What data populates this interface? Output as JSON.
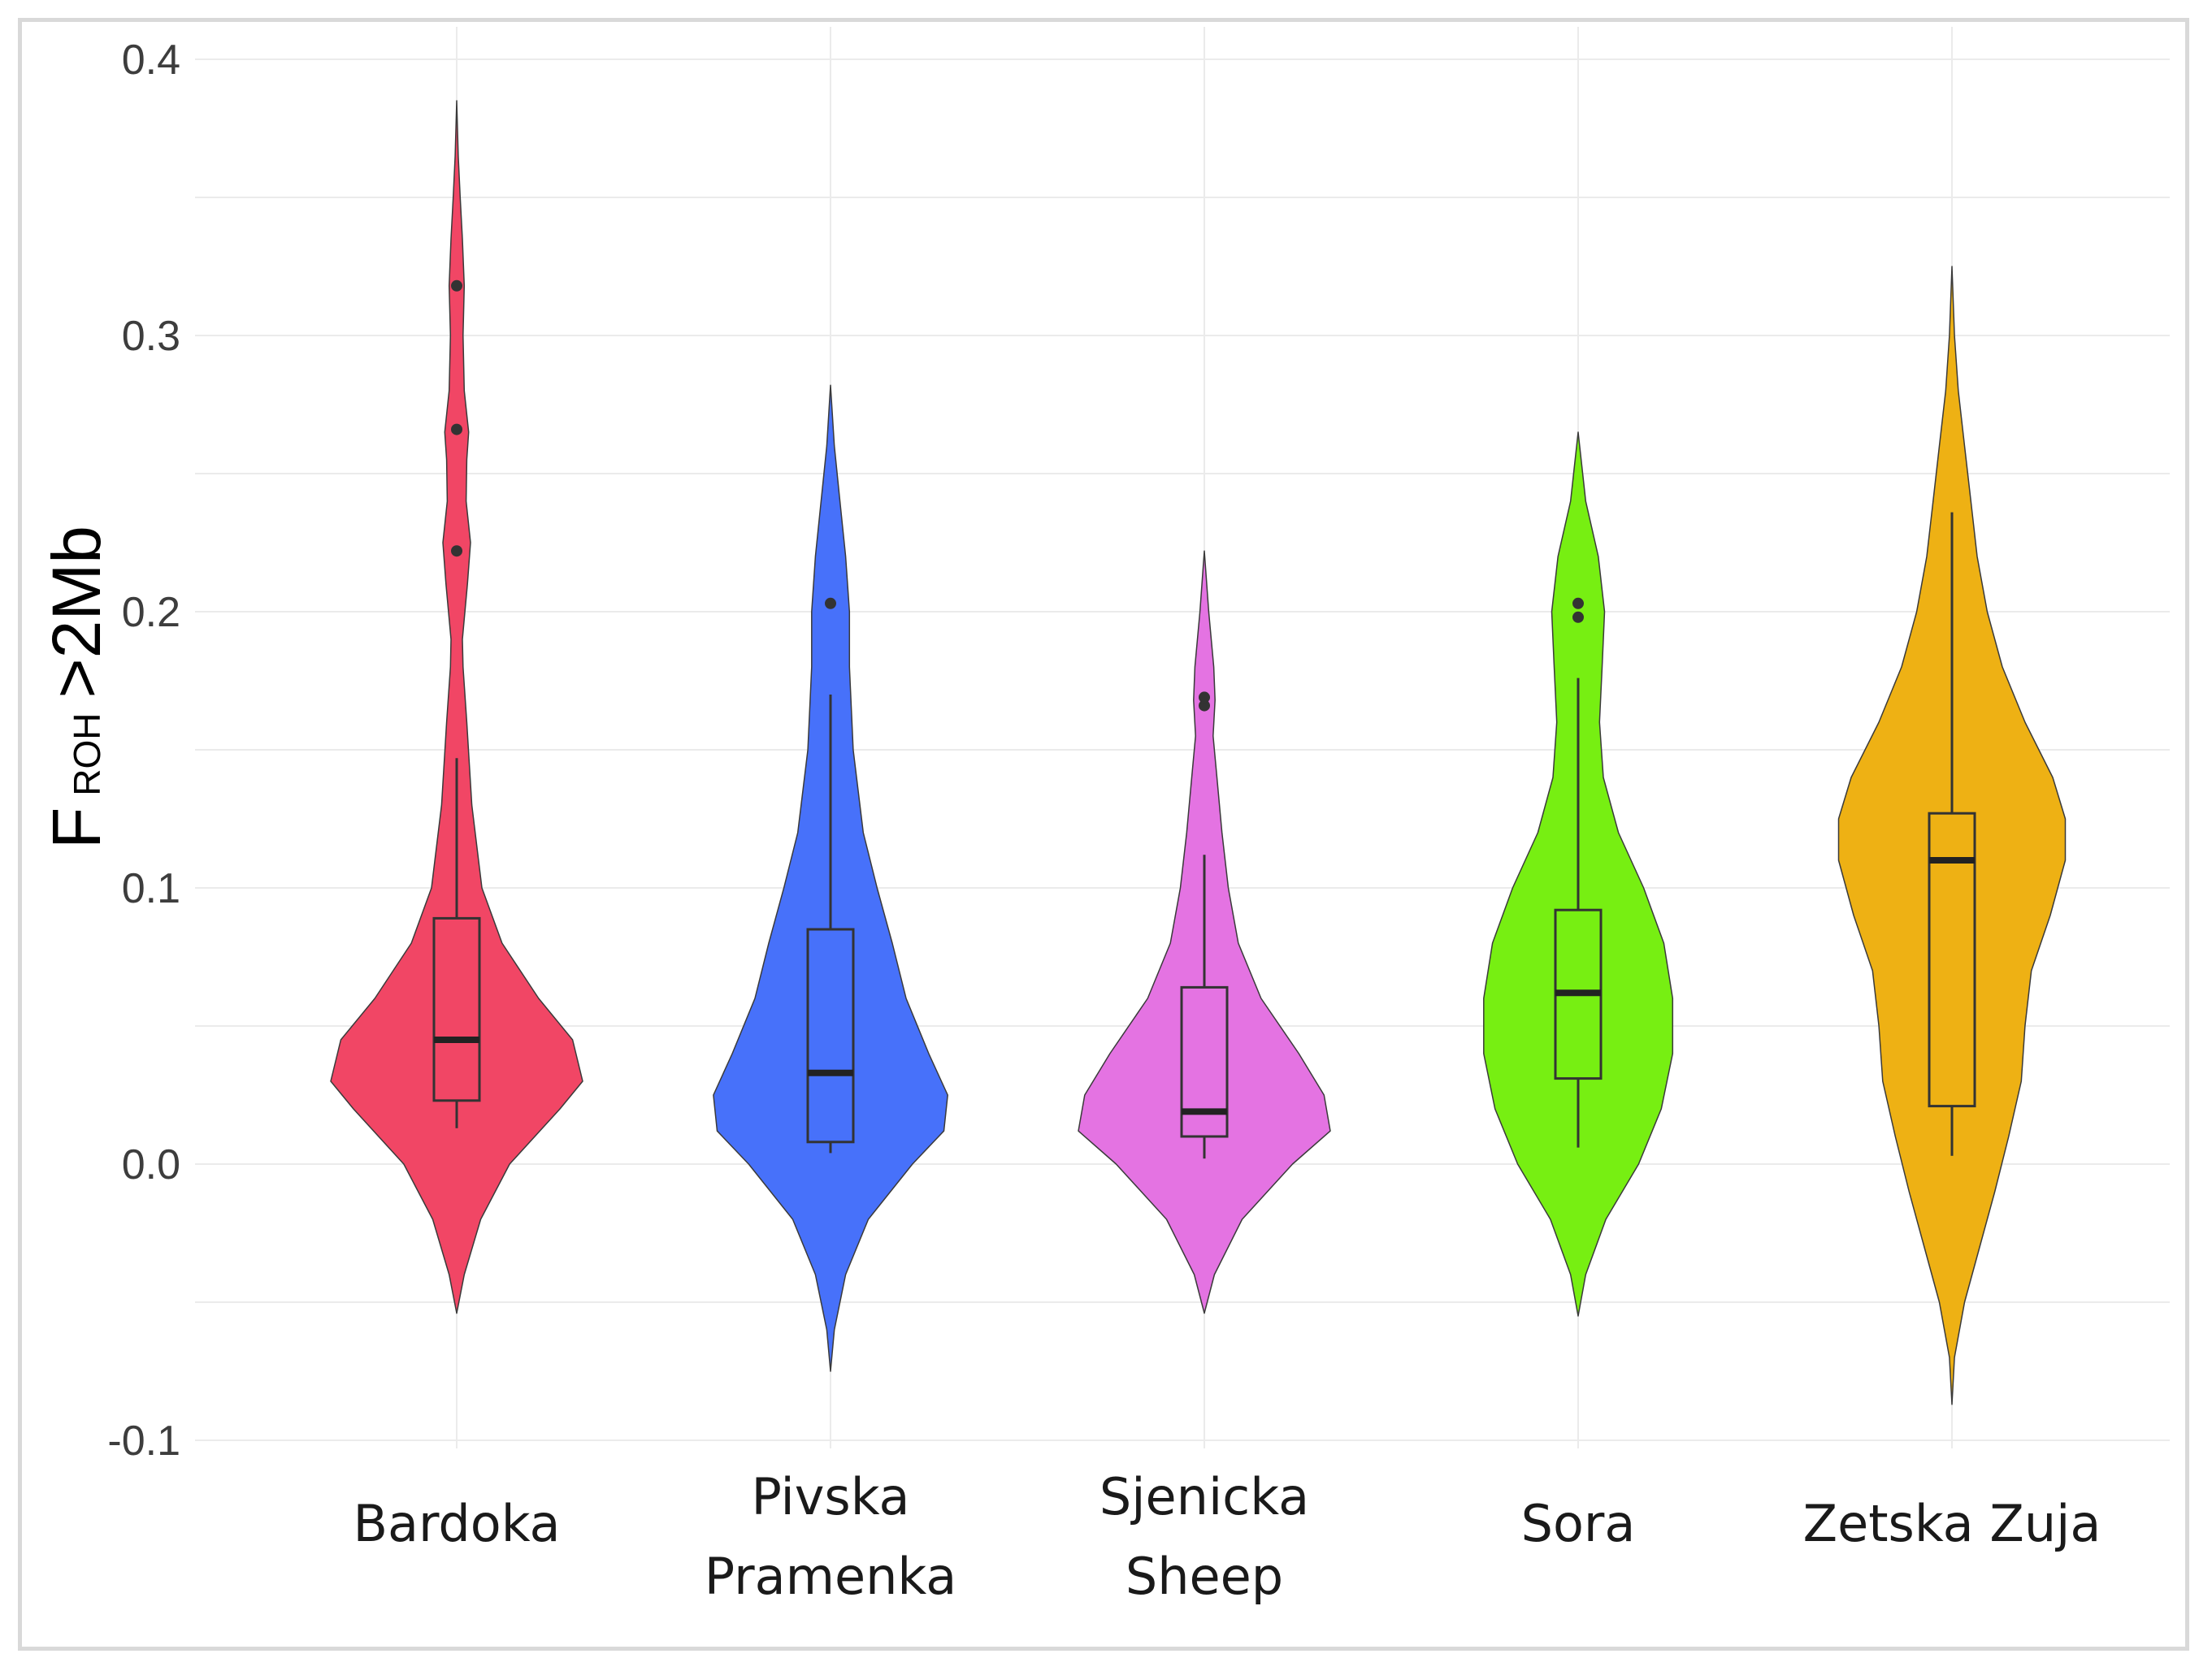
{
  "chart_data": {
    "type": "violin",
    "title": "",
    "xlabel": "",
    "ylabel": {
      "main": "F",
      "subscript": "ROH",
      "suffix": ">2Mb"
    },
    "ylim": [
      -0.1,
      0.4
    ],
    "yticks": [
      -0.1,
      0.0,
      0.1,
      0.2,
      0.3,
      0.4
    ],
    "ytick_labels": [
      "-0.1",
      "0.0",
      "0.1",
      "0.2",
      "0.3",
      "0.4"
    ],
    "grid": true,
    "legend": "none",
    "series": [
      {
        "name": "Bardoka",
        "label_lines": [
          "Bardoka"
        ],
        "color": "#F14665",
        "box": {
          "whisker_low": 0.013,
          "q1": 0.023,
          "median": 0.045,
          "q3": 0.089,
          "whisker_high": 0.147
        },
        "outliers": [
          0.222,
          0.266,
          0.318
        ],
        "violin_range": [
          -0.054,
          0.385
        ],
        "density": [
          [
            -0.054,
            0.0
          ],
          [
            -0.04,
            0.06
          ],
          [
            -0.02,
            0.19
          ],
          [
            0.0,
            0.42
          ],
          [
            0.02,
            0.82
          ],
          [
            0.03,
            1.0
          ],
          [
            0.045,
            0.92
          ],
          [
            0.06,
            0.65
          ],
          [
            0.08,
            0.36
          ],
          [
            0.1,
            0.2
          ],
          [
            0.13,
            0.12
          ],
          [
            0.16,
            0.08
          ],
          [
            0.18,
            0.05
          ],
          [
            0.19,
            0.045
          ],
          [
            0.21,
            0.085
          ],
          [
            0.225,
            0.11
          ],
          [
            0.24,
            0.075
          ],
          [
            0.255,
            0.08
          ],
          [
            0.265,
            0.095
          ],
          [
            0.28,
            0.06
          ],
          [
            0.3,
            0.05
          ],
          [
            0.318,
            0.06
          ],
          [
            0.335,
            0.045
          ],
          [
            0.35,
            0.028
          ],
          [
            0.365,
            0.012
          ],
          [
            0.385,
            0.0
          ]
        ]
      },
      {
        "name": "Pivska Pramenka",
        "label_lines": [
          "Pivska",
          "Pramenka"
        ],
        "color": "#4771FA",
        "box": {
          "whisker_low": 0.004,
          "q1": 0.008,
          "median": 0.033,
          "q3": 0.085,
          "whisker_high": 0.17
        },
        "outliers": [
          0.203
        ],
        "violin_range": [
          -0.075,
          0.282
        ],
        "density": [
          [
            -0.075,
            0.0
          ],
          [
            -0.06,
            0.03
          ],
          [
            -0.04,
            0.12
          ],
          [
            -0.02,
            0.3
          ],
          [
            0.0,
            0.65
          ],
          [
            0.012,
            0.9
          ],
          [
            0.025,
            0.93
          ],
          [
            0.04,
            0.78
          ],
          [
            0.06,
            0.6
          ],
          [
            0.08,
            0.49
          ],
          [
            0.1,
            0.37
          ],
          [
            0.12,
            0.26
          ],
          [
            0.15,
            0.18
          ],
          [
            0.18,
            0.15
          ],
          [
            0.2,
            0.15
          ],
          [
            0.22,
            0.12
          ],
          [
            0.24,
            0.075
          ],
          [
            0.26,
            0.03
          ],
          [
            0.282,
            0.0
          ]
        ]
      },
      {
        "name": "Sjenicka Sheep",
        "label_lines": [
          "Sjenicka",
          "Sheep"
        ],
        "color": "#E473E2",
        "box": {
          "whisker_low": 0.002,
          "q1": 0.01,
          "median": 0.019,
          "q3": 0.064,
          "whisker_high": 0.112
        },
        "outliers": [
          0.166,
          0.169
        ],
        "violin_range": [
          -0.054,
          0.222
        ],
        "density": [
          [
            -0.054,
            0.0
          ],
          [
            -0.04,
            0.08
          ],
          [
            -0.02,
            0.3
          ],
          [
            0.0,
            0.7
          ],
          [
            0.012,
            1.0
          ],
          [
            0.025,
            0.95
          ],
          [
            0.04,
            0.75
          ],
          [
            0.06,
            0.45
          ],
          [
            0.08,
            0.27
          ],
          [
            0.1,
            0.19
          ],
          [
            0.12,
            0.14
          ],
          [
            0.14,
            0.1
          ],
          [
            0.155,
            0.07
          ],
          [
            0.168,
            0.085
          ],
          [
            0.18,
            0.075
          ],
          [
            0.2,
            0.035
          ],
          [
            0.222,
            0.0
          ]
        ]
      },
      {
        "name": "Sora",
        "label_lines": [
          "Sora"
        ],
        "color": "#77EF12",
        "box": {
          "whisker_low": 0.006,
          "q1": 0.031,
          "median": 0.062,
          "q3": 0.092,
          "whisker_high": 0.176
        },
        "outliers": [
          0.198,
          0.203
        ],
        "violin_range": [
          -0.055,
          0.265
        ],
        "density": [
          [
            -0.055,
            0.0
          ],
          [
            -0.04,
            0.06
          ],
          [
            -0.02,
            0.22
          ],
          [
            0.0,
            0.48
          ],
          [
            0.02,
            0.66
          ],
          [
            0.04,
            0.75
          ],
          [
            0.06,
            0.75
          ],
          [
            0.08,
            0.68
          ],
          [
            0.1,
            0.52
          ],
          [
            0.12,
            0.32
          ],
          [
            0.14,
            0.2
          ],
          [
            0.16,
            0.17
          ],
          [
            0.18,
            0.19
          ],
          [
            0.2,
            0.21
          ],
          [
            0.22,
            0.16
          ],
          [
            0.24,
            0.06
          ],
          [
            0.265,
            0.0
          ]
        ]
      },
      {
        "name": "Zetska Zuja",
        "label_lines": [
          "Zetska Zuja"
        ],
        "color": "#EEB114",
        "box": {
          "whisker_low": 0.003,
          "q1": 0.021,
          "median": 0.11,
          "q3": 0.127,
          "whisker_high": 0.236
        },
        "outliers": [],
        "violin_range": [
          -0.087,
          0.325
        ],
        "density": [
          [
            -0.087,
            0.0
          ],
          [
            -0.07,
            0.02
          ],
          [
            -0.05,
            0.1
          ],
          [
            -0.03,
            0.22
          ],
          [
            -0.01,
            0.34
          ],
          [
            0.01,
            0.45
          ],
          [
            0.03,
            0.55
          ],
          [
            0.05,
            0.58
          ],
          [
            0.07,
            0.63
          ],
          [
            0.09,
            0.78
          ],
          [
            0.11,
            0.9
          ],
          [
            0.125,
            0.9
          ],
          [
            0.14,
            0.8
          ],
          [
            0.16,
            0.58
          ],
          [
            0.18,
            0.4
          ],
          [
            0.2,
            0.28
          ],
          [
            0.22,
            0.2
          ],
          [
            0.24,
            0.15
          ],
          [
            0.26,
            0.1
          ],
          [
            0.28,
            0.05
          ],
          [
            0.3,
            0.02
          ],
          [
            0.325,
            0.0
          ]
        ]
      }
    ]
  }
}
